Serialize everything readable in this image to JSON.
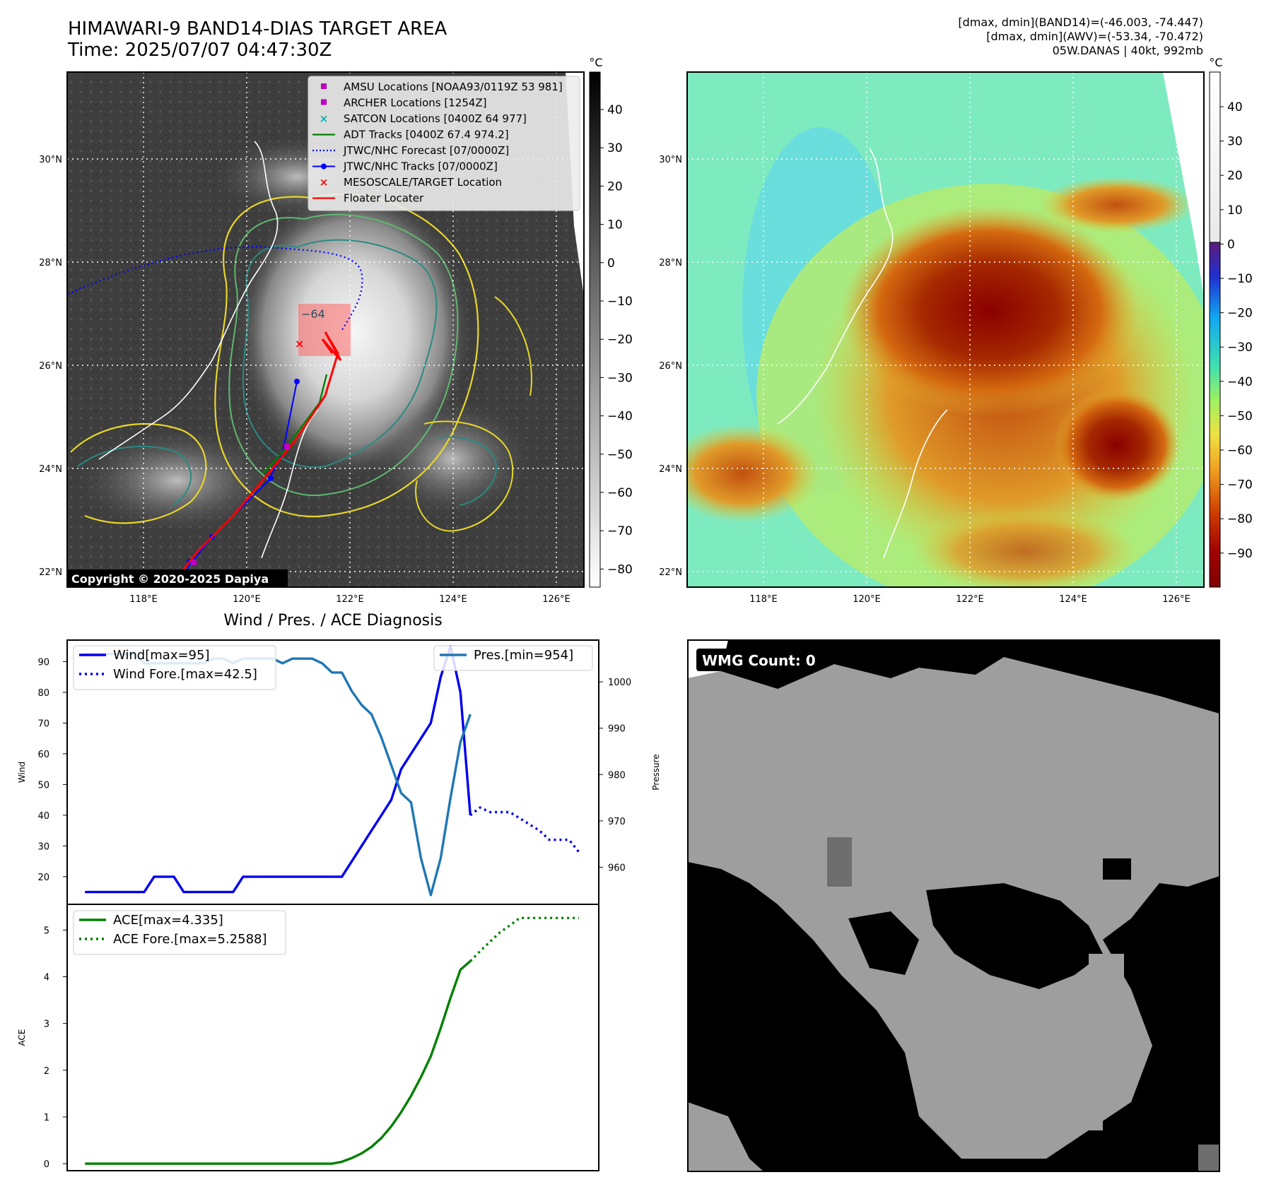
{
  "header": {
    "title": "HIMAWARI-9 BAND14-DIAS TARGET AREA",
    "time": "Time: 2025/07/07 04:47:30Z",
    "stats": [
      "[dmax, dmin](BAND14)=(-46.003, -74.447)",
      "[dmax, dmin](AWV)=(-53.34, -70.472)",
      "05W.DANAS | 40kt, 992mb"
    ]
  },
  "maps": {
    "lon_ticks": [
      "118°E",
      "120°E",
      "122°E",
      "124°E",
      "126°E"
    ],
    "lat_ticks": [
      "30°N",
      "28°N",
      "26°N",
      "24°N",
      "22°N"
    ],
    "lon_range": [
      116.5,
      126.5
    ],
    "lat_range": [
      21.7,
      31.7
    ],
    "colorbar_unit": "°C",
    "colorbar_ticks_ir": [
      "40",
      "30",
      "20",
      "10",
      "0",
      "−10",
      "−20",
      "−30",
      "−40",
      "−50",
      "−60",
      "−70",
      "−80"
    ],
    "colorbar_ticks_awv": [
      "40",
      "30",
      "20",
      "10",
      "0",
      "−10",
      "−20",
      "−30",
      "−40",
      "−50",
      "−60",
      "−70",
      "−80",
      "−90"
    ],
    "copyright": "Copyright © 2020-2025 Dapiya",
    "contour_label": "−64",
    "legend": [
      {
        "label": "AMSU Locations [NOAA93/0119Z 53 981]",
        "marker": "square",
        "color": "#c000c0"
      },
      {
        "label": "ARCHER Locations [1254Z]",
        "marker": "square",
        "color": "#c000c0"
      },
      {
        "label": "SATCON Locations [0400Z 64 977]",
        "marker": "x",
        "color": "#00b0b0"
      },
      {
        "label": "ADT Tracks [0400Z 67.4 974.2]",
        "marker": "line",
        "color": "#008000"
      },
      {
        "label": "JTWC/NHC Forecast [07/0000Z]",
        "marker": "dotted",
        "color": "#0000ff"
      },
      {
        "label": "JTWC/NHC Tracks [07/0000Z]",
        "marker": "line-dot",
        "color": "#0000ff"
      },
      {
        "label": "MESOSCALE/TARGET Location",
        "marker": "x",
        "color": "#ff0000"
      },
      {
        "label": "Floater Locater",
        "marker": "line",
        "color": "#ff0000"
      }
    ]
  },
  "chart_data": [
    {
      "type": "line",
      "title": "Wind / Pres. / ACE Diagnosis",
      "ylabel": "Wind",
      "y2label": "Pressure",
      "ylim": [
        11,
        97
      ],
      "y2lim": [
        952,
        1009
      ],
      "yticks": [
        20,
        30,
        40,
        50,
        60,
        70,
        80,
        90
      ],
      "y2ticks": [
        960,
        970,
        980,
        990,
        1000
      ],
      "series": [
        {
          "name": "Wind[max=95]",
          "style": "solid",
          "color": "#0000ee",
          "values": [
            15,
            15,
            15,
            15,
            15,
            15,
            15,
            20,
            20,
            20,
            15,
            15,
            15,
            15,
            15,
            15,
            20,
            20,
            20,
            20,
            20,
            20,
            20,
            20,
            20,
            20,
            20,
            25,
            30,
            35,
            40,
            45,
            55,
            60,
            65,
            70,
            85,
            95,
            80,
            40
          ]
        },
        {
          "name": "Wind Fore.[max=42.5]",
          "style": "dotted",
          "color": "#0000ee",
          "x_start": 39,
          "values": [
            40,
            42.5,
            41,
            41,
            41,
            39,
            37,
            35,
            32,
            32,
            32,
            28
          ]
        },
        {
          "name": "Pres.[min=954]",
          "style": "solid",
          "color": "#1f77b4",
          "axis": "right",
          "values": [
            1006,
            1006,
            1006,
            1006,
            1006,
            1006,
            1004,
            1004,
            1004,
            1004,
            1004,
            1004,
            1004,
            1005,
            1005,
            1004,
            1005,
            1005,
            1005,
            1005,
            1004,
            1005,
            1005,
            1005,
            1004,
            1002,
            1002,
            998,
            995,
            993,
            988,
            982,
            976,
            974,
            962,
            954,
            962,
            975,
            987,
            993
          ]
        }
      ]
    },
    {
      "type": "line",
      "ylabel": "ACE",
      "ylim": [
        -0.15,
        5.55
      ],
      "yticks": [
        0,
        1,
        2,
        3,
        4,
        5
      ],
      "series": [
        {
          "name": "ACE[max=4.335]",
          "style": "solid",
          "color": "#008000",
          "values": [
            0,
            0,
            0,
            0,
            0,
            0,
            0,
            0,
            0,
            0,
            0,
            0,
            0,
            0,
            0,
            0,
            0,
            0,
            0,
            0,
            0,
            0,
            0,
            0,
            0,
            0,
            0.04,
            0.12,
            0.22,
            0.36,
            0.55,
            0.8,
            1.1,
            1.45,
            1.85,
            2.3,
            2.9,
            3.55,
            4.15,
            4.335
          ]
        },
        {
          "name": "ACE Fore.[max=5.2588]",
          "style": "dotted",
          "color": "#008000",
          "x_start": 39,
          "values": [
            4.335,
            4.55,
            4.75,
            4.95,
            5.1,
            5.2588,
            5.2588,
            5.2588,
            5.2588,
            5.2588,
            5.2588,
            5.2588
          ]
        }
      ]
    }
  ],
  "wmg": {
    "label": "WMG Count: 0"
  }
}
